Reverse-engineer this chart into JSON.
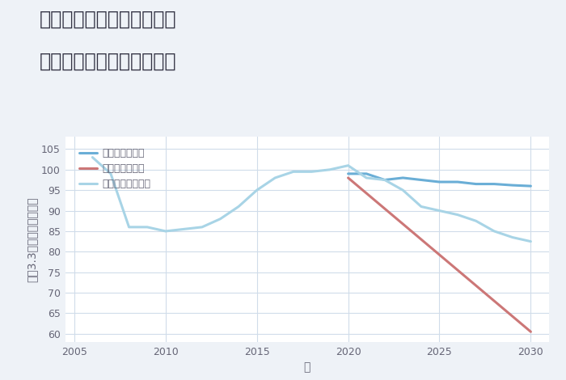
{
  "title_line1": "奈良県高市郡高取町越智の",
  "title_line2": "中古マンションの価格推移",
  "xlabel": "年",
  "ylabel": "坪（3.3㎡）単価（万円）",
  "background_color": "#eef2f7",
  "plot_bg_color": "#ffffff",
  "good_scenario": {
    "label": "グッドシナリオ",
    "color": "#6aaed6",
    "linewidth": 2.2,
    "years": [
      2020,
      2021,
      2022,
      2023,
      2024,
      2025,
      2026,
      2027,
      2028,
      2029,
      2030
    ],
    "values": [
      99,
      99,
      97.5,
      98,
      97.5,
      97,
      97,
      96.5,
      96.5,
      96.2,
      96
    ]
  },
  "bad_scenario": {
    "label": "バッドシナリオ",
    "color": "#cc7777",
    "linewidth": 2.2,
    "years": [
      2020,
      2030
    ],
    "values": [
      98,
      60.5
    ]
  },
  "normal_scenario": {
    "label": "ノーマルシナリオ",
    "color": "#a8d4e6",
    "linewidth": 2.2,
    "years": [
      2006,
      2007,
      2008,
      2009,
      2010,
      2011,
      2012,
      2013,
      2014,
      2015,
      2016,
      2017,
      2018,
      2019,
      2020,
      2021,
      2022,
      2023,
      2024,
      2025,
      2026,
      2027,
      2028,
      2029,
      2030
    ],
    "values": [
      103,
      99,
      86,
      86,
      85,
      85.5,
      86,
      88,
      91,
      95,
      98,
      99.5,
      99.5,
      100,
      101,
      98,
      97.5,
      95,
      91,
      90,
      89,
      87.5,
      85,
      83.5,
      82.5
    ]
  },
  "ylim": [
    58,
    108
  ],
  "xlim": [
    2004.5,
    2031
  ],
  "yticks": [
    60,
    65,
    70,
    75,
    80,
    85,
    90,
    95,
    100,
    105
  ],
  "xticks": [
    2005,
    2010,
    2015,
    2020,
    2025,
    2030
  ],
  "grid_color": "#d0dcea",
  "tick_color": "#666677",
  "title_color": "#333344",
  "title_fontsize": 17,
  "legend_fontsize": 9,
  "axis_label_fontsize": 10
}
